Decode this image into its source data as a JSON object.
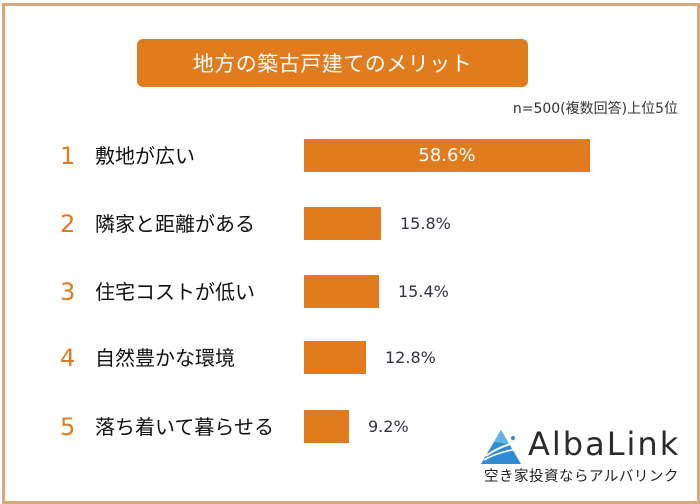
{
  "title": "地方の築古戸建てのメリット",
  "note": "n=500(複数回答)上位5位",
  "colors": {
    "accent": "#E07B1E",
    "frame": "#D9A77A",
    "text": "#111111",
    "value_text": "#333340"
  },
  "items": [
    {
      "rank": "1",
      "label": "敷地が広い",
      "value": 58.6,
      "value_label": "58.6%"
    },
    {
      "rank": "2",
      "label": "隣家と距離がある",
      "value": 15.8,
      "value_label": "15.8%"
    },
    {
      "rank": "3",
      "label": "住宅コストが低い",
      "value": 15.4,
      "value_label": "15.4%"
    },
    {
      "rank": "4",
      "label": "自然豊かな環境",
      "value": 12.8,
      "value_label": "12.8%"
    },
    {
      "rank": "5",
      "label": "落ち着いて暮らせる",
      "value": 9.2,
      "value_label": "9.2%"
    }
  ],
  "logo": {
    "name": "AlbaLink",
    "tagline": "空き家投資ならアルバリンク",
    "icon": "triangle-logo-icon"
  },
  "chart_data": {
    "type": "bar",
    "orientation": "horizontal",
    "title": "地方の築古戸建てのメリット",
    "subtitle": "n=500(複数回答)上位5位",
    "categories": [
      "敷地が広い",
      "隣家と距離がある",
      "住宅コストが低い",
      "自然豊かな環境",
      "落ち着いて暮らせる"
    ],
    "values": [
      58.6,
      15.8,
      15.4,
      12.8,
      9.2
    ],
    "value_labels": [
      "58.6%",
      "15.8%",
      "15.4%",
      "12.8%",
      "9.2%"
    ],
    "ranks": [
      1,
      2,
      3,
      4,
      5
    ],
    "xlabel": "",
    "ylabel": "",
    "unit": "%",
    "grid": false,
    "legend": null,
    "bar_color": "#E07B1E"
  }
}
